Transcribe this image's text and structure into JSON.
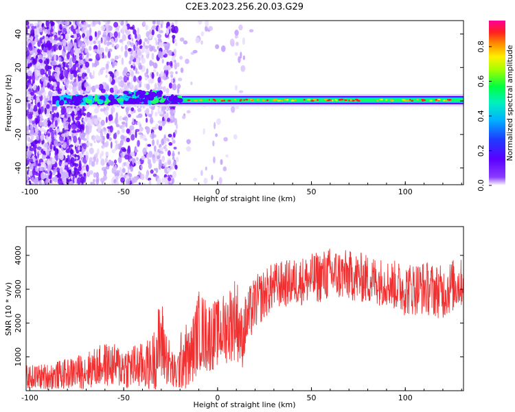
{
  "figure": {
    "title": "C2E3.2023.256.20.03.G29"
  },
  "colors": {
    "snr_line": "#f03030",
    "spectrogram_colormap": [
      "#ffffff",
      "#6a00ff",
      "#1f4fff",
      "#00c8ff",
      "#00ff7f",
      "#3aff00",
      "#d8ff00",
      "#ff9a00",
      "#ff1a1a",
      "#ff00a0"
    ]
  },
  "chart_data": [
    {
      "type": "heatmap",
      "xlabel": "Height of straight line (km)",
      "ylabel": "Frequency (Hz)",
      "xlim": [
        -102,
        131
      ],
      "ylim": [
        -50,
        48
      ],
      "xticks": [
        -100,
        -50,
        0,
        50,
        100
      ],
      "yticks": [
        -40,
        -20,
        0,
        20,
        40
      ],
      "grid": false,
      "colorbar": {
        "label": "Normalized spectral amplitude",
        "range": [
          0.0,
          0.95
        ],
        "ticks": [
          "0.0",
          "0.2",
          "0.4",
          "0.6",
          "0.8"
        ],
        "tick_values": [
          0.0,
          0.2,
          0.4,
          0.6,
          0.8
        ]
      },
      "features": {
        "carrier_frequency": 0.5,
        "carrier_x_range": [
          -88,
          131
        ],
        "bulk_noise_x_range": [
          -102,
          -70
        ],
        "scattered_noise_x_range": [
          -70,
          -22
        ]
      }
    },
    {
      "type": "line",
      "xlabel": "Height of straight line (km)",
      "ylabel": "SNR (10 * v/v)",
      "xlim": [
        -102,
        131
      ],
      "ylim": [
        0,
        4850
      ],
      "xticks": [
        -100,
        -50,
        0,
        50,
        100
      ],
      "yticks": [
        1000,
        2000,
        3000,
        4000
      ],
      "grid": false,
      "series": [
        {
          "color": "#f03030",
          "x": [
            -102,
            -90,
            -80,
            -70,
            -60,
            -50,
            -40,
            -35,
            -30,
            -28,
            -25,
            -22,
            -18,
            -15,
            -10,
            -5,
            0,
            5,
            10,
            13,
            15,
            20,
            30,
            40,
            50,
            60,
            70,
            80,
            90,
            100,
            110,
            120,
            125,
            131
          ],
          "center": [
            400,
            420,
            500,
            600,
            780,
            700,
            720,
            800,
            1500,
            1100,
            700,
            450,
            1100,
            900,
            1800,
            1600,
            1700,
            1900,
            2200,
            1500,
            2000,
            2600,
            3100,
            3200,
            3300,
            3450,
            3400,
            3300,
            3200,
            3000,
            3050,
            2900,
            3100,
            3200
          ],
          "spread": [
            350,
            400,
            450,
            550,
            650,
            650,
            700,
            800,
            1400,
            900,
            700,
            500,
            1100,
            900,
            1200,
            1100,
            1000,
            1100,
            1300,
            900,
            900,
            800,
            700,
            700,
            750,
            800,
            750,
            750,
            700,
            800,
            800,
            800,
            800,
            700
          ]
        }
      ]
    }
  ]
}
